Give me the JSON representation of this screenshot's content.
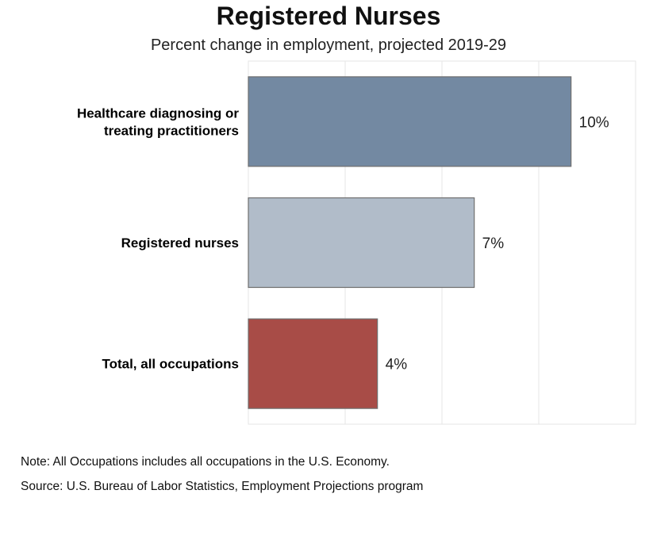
{
  "chart_data": {
    "type": "bar",
    "orientation": "horizontal",
    "title": "Registered Nurses",
    "subtitle": "Percent change in employment, projected 2019-29",
    "categories": [
      [
        "Healthcare diagnosing or",
        "treating practitioners"
      ],
      [
        "Registered nurses"
      ],
      [
        "Total, all occupations"
      ]
    ],
    "values": [
      10,
      7,
      4
    ],
    "value_labels": [
      "10%",
      "7%",
      "4%"
    ],
    "colors": [
      "#7389a2",
      "#b1bcc9",
      "#a84c47"
    ],
    "xlim": [
      0,
      12
    ],
    "grid": true,
    "tick_labels_shown": false
  },
  "footer": {
    "note": "Note: All Occupations includes all occupations in the U.S. Economy.",
    "source": "Source: U.S. Bureau of Labor Statistics, Employment Projections program"
  }
}
